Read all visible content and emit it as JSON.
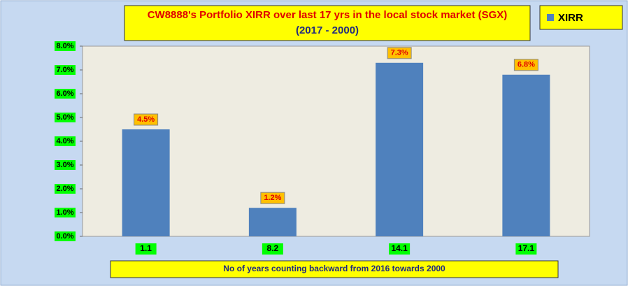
{
  "chart_data": {
    "type": "bar",
    "title": "CW8888's Portfolio XIRR over last 17 yrs in the local stock market (SGX)",
    "subtitle": "(2017 - 2000)",
    "x_label": "No of years counting backward from 2016 towards 2000",
    "categories": [
      "1.1",
      "8.2",
      "14.1",
      "17.1"
    ],
    "series": [
      {
        "name": "XIRR",
        "color": "#4f81bd",
        "values": [
          4.5,
          1.2,
          7.3,
          6.8
        ],
        "value_labels": [
          "4.5%",
          "1.2%",
          "7.3%",
          "6.8%"
        ]
      }
    ],
    "ylim": [
      0,
      8
    ],
    "yticks": [
      {
        "value": 0,
        "label": "0.0%"
      },
      {
        "value": 1,
        "label": "1.0%"
      },
      {
        "value": 2,
        "label": "2.0%"
      },
      {
        "value": 3,
        "label": "3.0%"
      },
      {
        "value": 4,
        "label": "4.0%"
      },
      {
        "value": 5,
        "label": "5.0%"
      },
      {
        "value": 6,
        "label": "6.0%"
      },
      {
        "value": 7,
        "label": "7.0%"
      },
      {
        "value": 8,
        "label": "8.0%"
      }
    ],
    "legend": "top-right"
  }
}
